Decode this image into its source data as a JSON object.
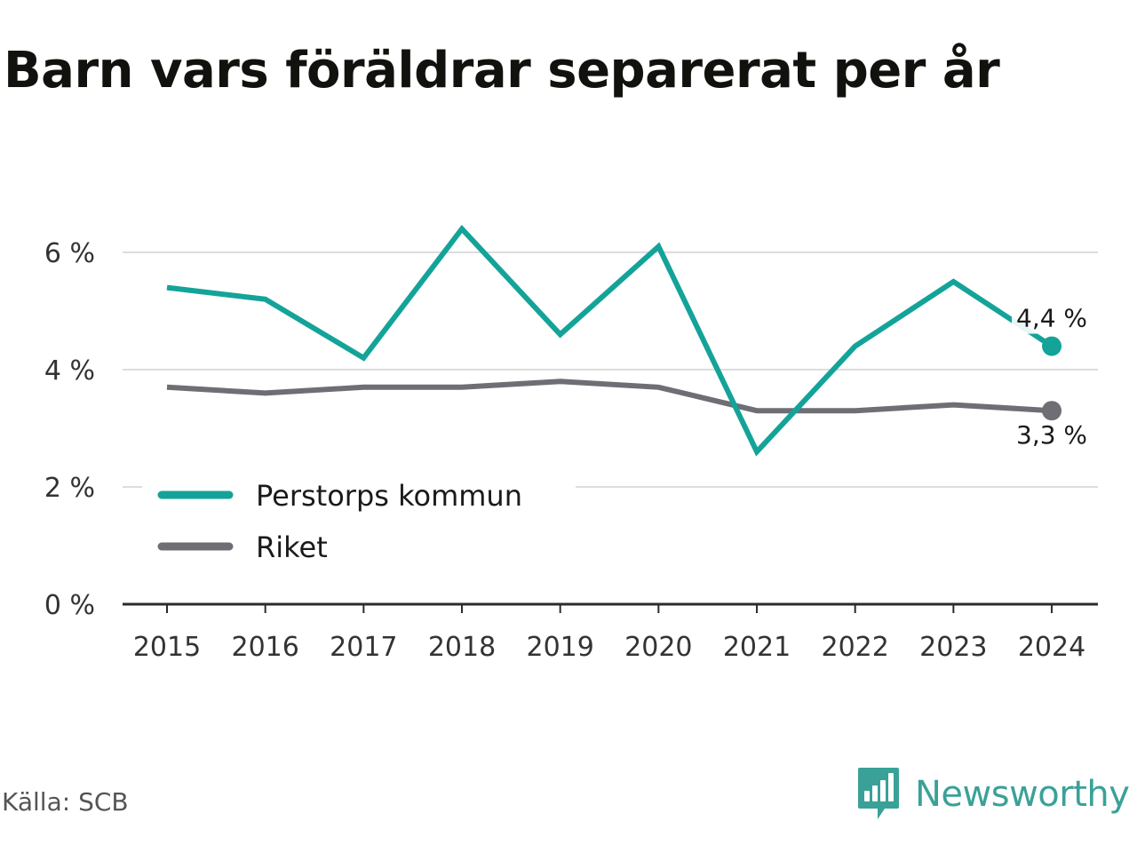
{
  "title": "Barn vars föräldrar separerat per år",
  "source": "Källa: SCB",
  "brand": {
    "name": "Newsworthy",
    "icon": "newsworthy-logo-icon",
    "color": "#3aa198"
  },
  "chart_data": {
    "type": "line",
    "title": "Barn vars föräldrar separerat per år",
    "xlabel": "",
    "ylabel": "",
    "x": [
      "2015",
      "2016",
      "2017",
      "2018",
      "2019",
      "2020",
      "2021",
      "2022",
      "2023",
      "2024"
    ],
    "y_ticks": [
      0,
      2,
      4,
      6
    ],
    "y_tick_labels": [
      "0 %",
      "2 %",
      "4 %",
      "6 %"
    ],
    "ylim": [
      0,
      6.6
    ],
    "grid": true,
    "legend_position": "bottom-left",
    "series": [
      {
        "name": "Perstorps kommun",
        "color": "#14a399",
        "values": [
          5.4,
          5.2,
          4.2,
          6.4,
          4.6,
          6.1,
          2.6,
          4.4,
          5.5,
          4.4
        ],
        "end_label": "4,4 %"
      },
      {
        "name": "Riket",
        "color": "#6f6e75",
        "values": [
          3.7,
          3.6,
          3.7,
          3.7,
          3.8,
          3.7,
          3.3,
          3.3,
          3.4,
          3.3
        ],
        "end_label": "3,3 %"
      }
    ]
  }
}
